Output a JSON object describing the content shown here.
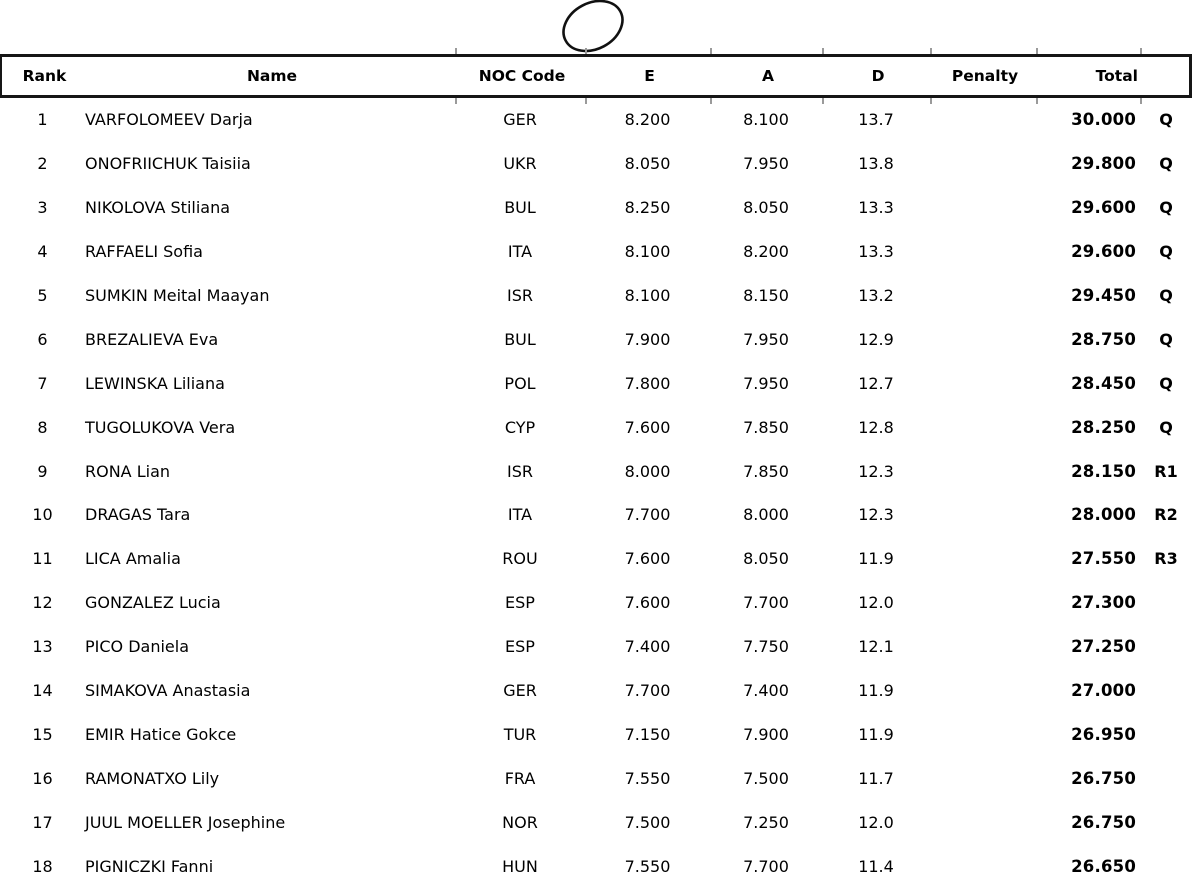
{
  "page": {
    "background": "#ffffff",
    "colors": {
      "text": "#000000",
      "table_border": "#161616",
      "separator_tick": "#9a9a9a"
    }
  },
  "apparatus": {
    "icon": "hoop-icon",
    "description": "hand-drawn hoop (ellipse outline) above table"
  },
  "table": {
    "columns": [
      {
        "key": "rank",
        "label": "Rank"
      },
      {
        "key": "name",
        "label": "Name"
      },
      {
        "key": "noc",
        "label": "NOC Code"
      },
      {
        "key": "e",
        "label": "E"
      },
      {
        "key": "a",
        "label": "A"
      },
      {
        "key": "d",
        "label": "D"
      },
      {
        "key": "penalty",
        "label": "Penalty"
      },
      {
        "key": "total",
        "label": "Total"
      },
      {
        "key": "qual",
        "label": ""
      }
    ],
    "rows": [
      {
        "rank": "1",
        "name": "VARFOLOMEEV Darja",
        "noc": "GER",
        "e": "8.200",
        "a": "8.100",
        "d": "13.7",
        "penalty": "",
        "total": "30.000",
        "qual": "Q"
      },
      {
        "rank": "2",
        "name": "ONOFRIICHUK Taisiia",
        "noc": "UKR",
        "e": "8.050",
        "a": "7.950",
        "d": "13.8",
        "penalty": "",
        "total": "29.800",
        "qual": "Q"
      },
      {
        "rank": "3",
        "name": "NIKOLOVA Stiliana",
        "noc": "BUL",
        "e": "8.250",
        "a": "8.050",
        "d": "13.3",
        "penalty": "",
        "total": "29.600",
        "qual": "Q"
      },
      {
        "rank": "4",
        "name": "RAFFAELI Sofia",
        "noc": "ITA",
        "e": "8.100",
        "a": "8.200",
        "d": "13.3",
        "penalty": "",
        "total": "29.600",
        "qual": "Q"
      },
      {
        "rank": "5",
        "name": "SUMKIN Meital Maayan",
        "noc": "ISR",
        "e": "8.100",
        "a": "8.150",
        "d": "13.2",
        "penalty": "",
        "total": "29.450",
        "qual": "Q"
      },
      {
        "rank": "6",
        "name": "BREZALIEVA Eva",
        "noc": "BUL",
        "e": "7.900",
        "a": "7.950",
        "d": "12.9",
        "penalty": "",
        "total": "28.750",
        "qual": "Q"
      },
      {
        "rank": "7",
        "name": "LEWINSKA Liliana",
        "noc": "POL",
        "e": "7.800",
        "a": "7.950",
        "d": "12.7",
        "penalty": "",
        "total": "28.450",
        "qual": "Q"
      },
      {
        "rank": "8",
        "name": "TUGOLUKOVA Vera",
        "noc": "CYP",
        "e": "7.600",
        "a": "7.850",
        "d": "12.8",
        "penalty": "",
        "total": "28.250",
        "qual": "Q"
      },
      {
        "rank": "9",
        "name": "RONA Lian",
        "noc": "ISR",
        "e": "8.000",
        "a": "7.850",
        "d": "12.3",
        "penalty": "",
        "total": "28.150",
        "qual": "R1"
      },
      {
        "rank": "10",
        "name": "DRAGAS Tara",
        "noc": "ITA",
        "e": "7.700",
        "a": "8.000",
        "d": "12.3",
        "penalty": "",
        "total": "28.000",
        "qual": "R2"
      },
      {
        "rank": "11",
        "name": "LICA Amalia",
        "noc": "ROU",
        "e": "7.600",
        "a": "8.050",
        "d": "11.9",
        "penalty": "",
        "total": "27.550",
        "qual": "R3"
      },
      {
        "rank": "12",
        "name": "GONZALEZ Lucia",
        "noc": "ESP",
        "e": "7.600",
        "a": "7.700",
        "d": "12.0",
        "penalty": "",
        "total": "27.300",
        "qual": ""
      },
      {
        "rank": "13",
        "name": "PICO Daniela",
        "noc": "ESP",
        "e": "7.400",
        "a": "7.750",
        "d": "12.1",
        "penalty": "",
        "total": "27.250",
        "qual": ""
      },
      {
        "rank": "14",
        "name": "SIMAKOVA Anastasia",
        "noc": "GER",
        "e": "7.700",
        "a": "7.400",
        "d": "11.9",
        "penalty": "",
        "total": "27.000",
        "qual": ""
      },
      {
        "rank": "15",
        "name": "EMIR Hatice Gokce",
        "noc": "TUR",
        "e": "7.150",
        "a": "7.900",
        "d": "11.9",
        "penalty": "",
        "total": "26.950",
        "qual": ""
      },
      {
        "rank": "16",
        "name": "RAMONATXO Lily",
        "noc": "FRA",
        "e": "7.550",
        "a": "7.500",
        "d": "11.7",
        "penalty": "",
        "total": "26.750",
        "qual": ""
      },
      {
        "rank": "17",
        "name": "JUUL MOELLER Josephine",
        "noc": "NOR",
        "e": "7.500",
        "a": "7.250",
        "d": "12.0",
        "penalty": "",
        "total": "26.750",
        "qual": ""
      },
      {
        "rank": "18",
        "name": "PIGNICZKI Fanni",
        "noc": "HUN",
        "e": "7.550",
        "a": "7.700",
        "d": "11.4",
        "penalty": "",
        "total": "26.650",
        "qual": ""
      }
    ]
  }
}
